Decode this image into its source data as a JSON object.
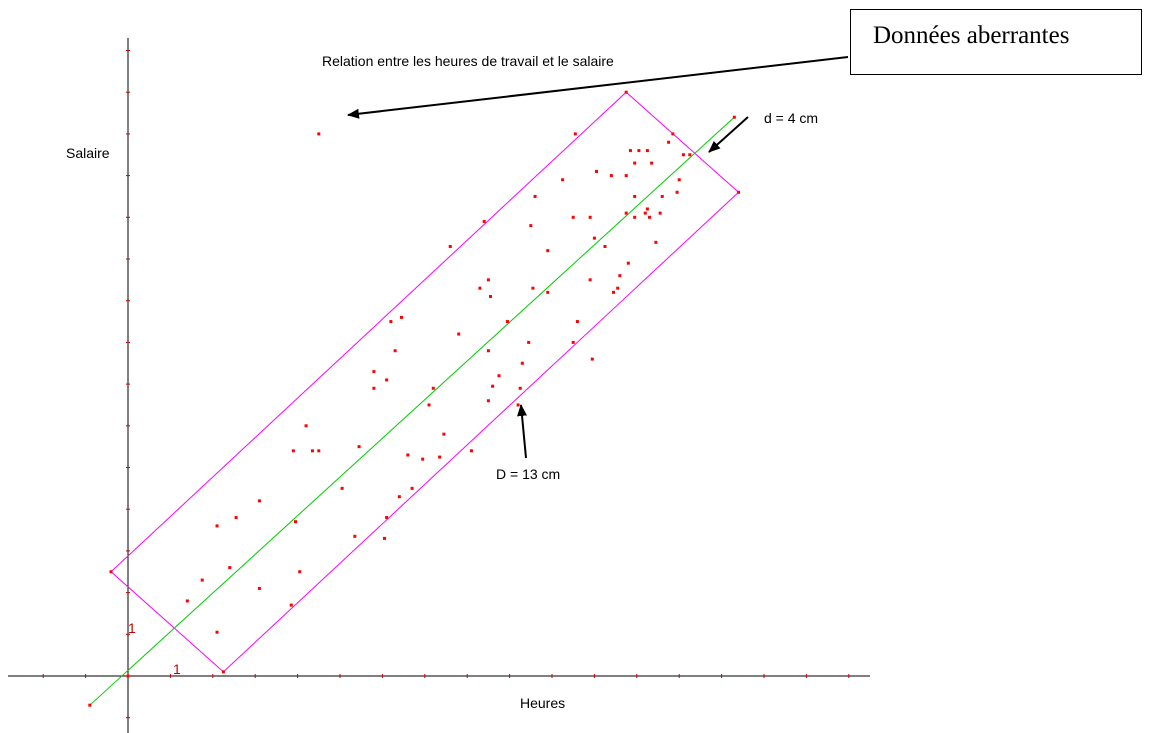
{
  "chart_data": {
    "type": "scatter",
    "title": "Relation entre les heures de travail et le salaire",
    "xlabel": "Heures",
    "ylabel": "Salaire",
    "xlim": [
      -2.8,
      17.6
    ],
    "ylim": [
      -1.4,
      15.0
    ],
    "x_unit_label": "1",
    "y_unit_label": "1",
    "grid": false,
    "regression_line": {
      "x": [
        -0.9,
        14.3
      ],
      "y": [
        -0.7,
        13.4
      ],
      "color": "#00cc00"
    },
    "rectangle": {
      "corners": [
        [
          -0.4,
          2.5
        ],
        [
          2.25,
          0.1
        ],
        [
          14.4,
          11.6
        ],
        [
          11.75,
          14.0
        ]
      ],
      "color": "#ff00ff"
    },
    "point_color": "#ff0000",
    "outlier": {
      "x": 4.5,
      "y": 13.0
    },
    "points": [
      {
        "x": 1.4,
        "y": 1.8
      },
      {
        "x": 1.75,
        "y": 2.3
      },
      {
        "x": 2.1,
        "y": 1.05
      },
      {
        "x": 2.55,
        "y": 3.8
      },
      {
        "x": 2.1,
        "y": 3.6
      },
      {
        "x": 2.4,
        "y": 2.6
      },
      {
        "x": 3.1,
        "y": 2.1
      },
      {
        "x": 3.1,
        "y": 4.2
      },
      {
        "x": 3.85,
        "y": 1.7
      },
      {
        "x": 4.05,
        "y": 2.5
      },
      {
        "x": 3.95,
        "y": 3.7
      },
      {
        "x": 4.35,
        "y": 5.4
      },
      {
        "x": 4.5,
        "y": 5.4
      },
      {
        "x": 3.9,
        "y": 5.4
      },
      {
        "x": 4.2,
        "y": 6.0
      },
      {
        "x": 5.05,
        "y": 4.5
      },
      {
        "x": 5.35,
        "y": 3.35
      },
      {
        "x": 6.05,
        "y": 3.3
      },
      {
        "x": 5.45,
        "y": 5.5
      },
      {
        "x": 6.1,
        "y": 3.8
      },
      {
        "x": 6.4,
        "y": 4.3
      },
      {
        "x": 6.6,
        "y": 5.3
      },
      {
        "x": 6.7,
        "y": 4.5
      },
      {
        "x": 6.95,
        "y": 5.2
      },
      {
        "x": 7.35,
        "y": 5.25
      },
      {
        "x": 7.45,
        "y": 5.8
      },
      {
        "x": 8.1,
        "y": 5.4
      },
      {
        "x": 7.1,
        "y": 6.5
      },
      {
        "x": 7.2,
        "y": 6.9
      },
      {
        "x": 6.1,
        "y": 7.1
      },
      {
        "x": 5.8,
        "y": 7.3
      },
      {
        "x": 5.8,
        "y": 6.9
      },
      {
        "x": 6.3,
        "y": 7.8
      },
      {
        "x": 6.2,
        "y": 8.5
      },
      {
        "x": 6.45,
        "y": 8.6
      },
      {
        "x": 7.8,
        "y": 8.2
      },
      {
        "x": 8.5,
        "y": 7.8
      },
      {
        "x": 8.5,
        "y": 6.6
      },
      {
        "x": 8.3,
        "y": 9.3
      },
      {
        "x": 8.5,
        "y": 9.5
      },
      {
        "x": 8.55,
        "y": 9.1
      },
      {
        "x": 8.95,
        "y": 8.5
      },
      {
        "x": 7.6,
        "y": 10.3
      },
      {
        "x": 8.4,
        "y": 10.9
      },
      {
        "x": 8.6,
        "y": 6.95
      },
      {
        "x": 8.75,
        "y": 7.2
      },
      {
        "x": 9.2,
        "y": 6.5
      },
      {
        "x": 9.25,
        "y": 6.9
      },
      {
        "x": 9.3,
        "y": 7.5
      },
      {
        "x": 9.45,
        "y": 8.0
      },
      {
        "x": 9.5,
        "y": 10.8
      },
      {
        "x": 9.6,
        "y": 11.5
      },
      {
        "x": 9.9,
        "y": 10.2
      },
      {
        "x": 9.55,
        "y": 9.3
      },
      {
        "x": 9.9,
        "y": 9.2
      },
      {
        "x": 10.5,
        "y": 11.0
      },
      {
        "x": 10.9,
        "y": 11.0
      },
      {
        "x": 10.25,
        "y": 11.9
      },
      {
        "x": 10.55,
        "y": 13.0
      },
      {
        "x": 11.0,
        "y": 10.5
      },
      {
        "x": 11.05,
        "y": 12.1
      },
      {
        "x": 10.6,
        "y": 8.5
      },
      {
        "x": 10.5,
        "y": 8.0
      },
      {
        "x": 10.9,
        "y": 9.5
      },
      {
        "x": 11.55,
        "y": 9.3
      },
      {
        "x": 11.45,
        "y": 9.2
      },
      {
        "x": 11.6,
        "y": 9.6
      },
      {
        "x": 11.25,
        "y": 10.3
      },
      {
        "x": 11.4,
        "y": 12.0
      },
      {
        "x": 11.75,
        "y": 12.0
      },
      {
        "x": 11.85,
        "y": 12.6
      },
      {
        "x": 11.95,
        "y": 12.3
      },
      {
        "x": 12.25,
        "y": 12.6
      },
      {
        "x": 11.95,
        "y": 11.5
      },
      {
        "x": 12.25,
        "y": 11.2
      },
      {
        "x": 11.95,
        "y": 11.0
      },
      {
        "x": 12.55,
        "y": 11.1
      },
      {
        "x": 12.3,
        "y": 11.0
      },
      {
        "x": 12.45,
        "y": 10.4
      },
      {
        "x": 13.0,
        "y": 11.9
      },
      {
        "x": 12.75,
        "y": 12.8
      },
      {
        "x": 13.1,
        "y": 12.5
      },
      {
        "x": 12.95,
        "y": 11.6
      },
      {
        "x": 12.85,
        "y": 13.0
      },
      {
        "x": 13.25,
        "y": 12.5
      },
      {
        "x": 12.6,
        "y": 11.5
      },
      {
        "x": 12.35,
        "y": 12.3
      },
      {
        "x": 12.05,
        "y": 12.6
      },
      {
        "x": 11.8,
        "y": 9.9
      },
      {
        "x": 10.95,
        "y": 7.6
      },
      {
        "x": 12.2,
        "y": 11.1
      },
      {
        "x": 11.75,
        "y": 11.1
      }
    ],
    "annotations": [
      {
        "text": "Données aberrantes",
        "type": "callout-box"
      },
      {
        "text": "d = 4 cm"
      },
      {
        "text": "D = 13 cm"
      }
    ]
  }
}
